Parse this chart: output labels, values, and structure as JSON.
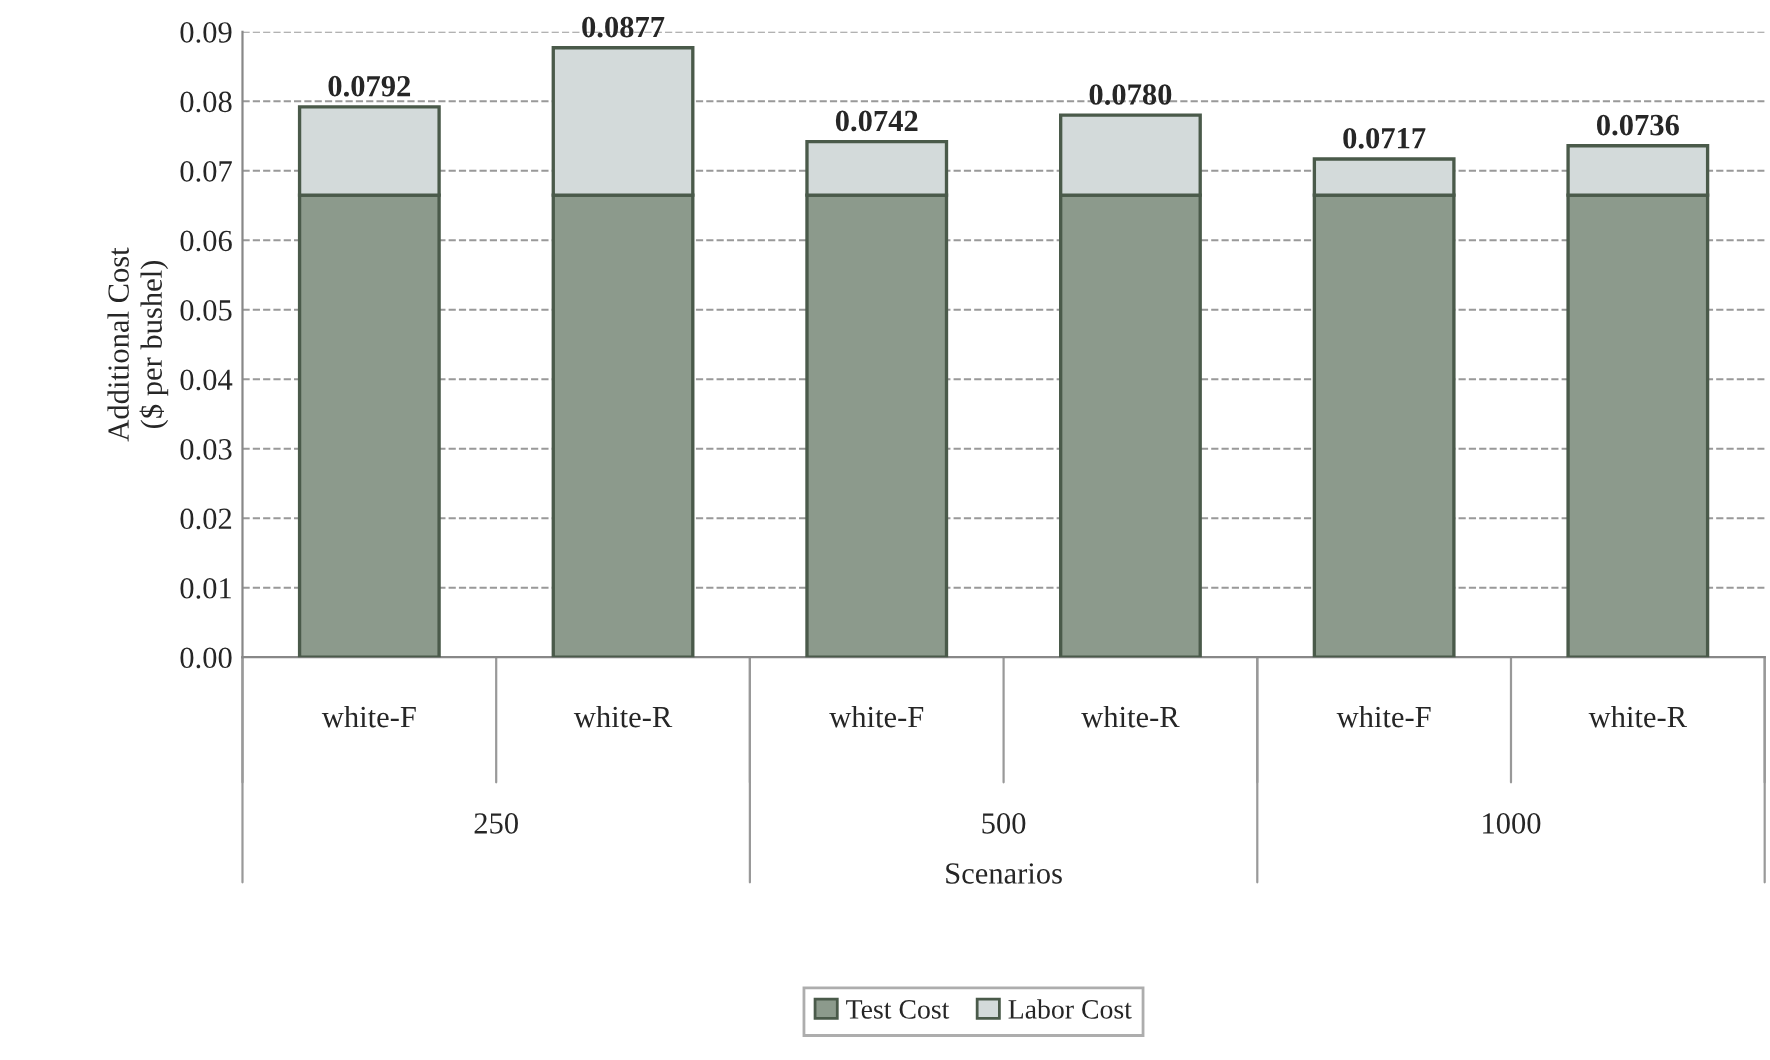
{
  "chart_data": {
    "type": "bar",
    "stacked": true,
    "categories": [
      "white-F",
      "white-R",
      "white-F",
      "white-R",
      "white-F",
      "white-R"
    ],
    "series": [
      {
        "name": "Test Cost",
        "color": "#8c9a8c",
        "values": [
          0.0665,
          0.0665,
          0.0665,
          0.0665,
          0.0665,
          0.0665
        ]
      },
      {
        "name": "Labor Cost",
        "color": "#d3dada",
        "values": [
          0.0127,
          0.0212,
          0.0077,
          0.0115,
          0.0052,
          0.0071
        ]
      }
    ],
    "totals": [
      "0.0792",
      "0.0877",
      "0.0742",
      "0.0780",
      "0.0717",
      "0.0736"
    ],
    "annotations": [
      "250",
      "500",
      "1000"
    ],
    "xlabel": "Scenarios",
    "ylabel": "Additional Cost\n($ per bushel)",
    "ylim": [
      0,
      0.09
    ],
    "yticks": [
      {
        "value": 0,
        "label": "0.00"
      },
      {
        "value": 0.01,
        "label": "0.01"
      },
      {
        "value": 0.02,
        "label": "0.02"
      },
      {
        "value": 0.03,
        "label": "0.03"
      },
      {
        "value": 0.04,
        "label": "0.04"
      },
      {
        "value": 0.05,
        "label": "0.05"
      },
      {
        "value": 0.06,
        "label": "0.06"
      },
      {
        "value": 0.07,
        "label": "0.07"
      },
      {
        "value": 0.08,
        "label": "0.08"
      },
      {
        "value": 0.09,
        "label": "0.09"
      }
    ],
    "grid": "y",
    "legend": "bottom"
  }
}
